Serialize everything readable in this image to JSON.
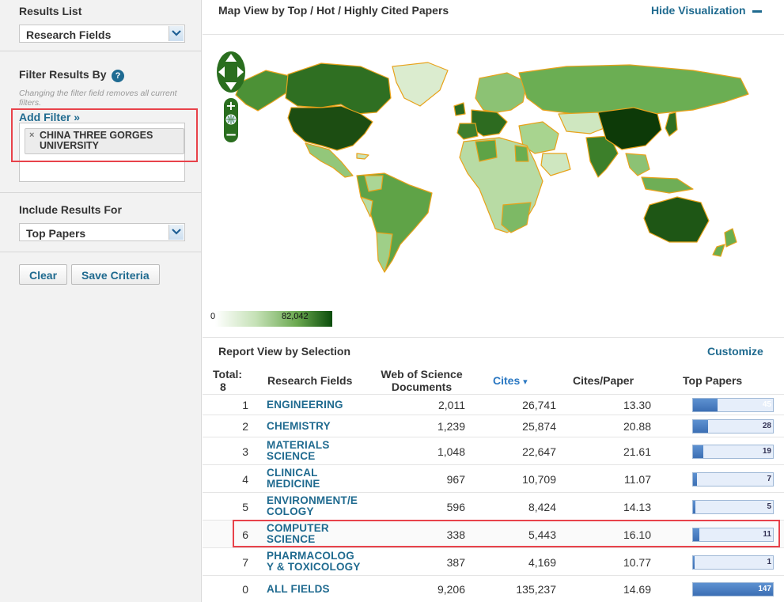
{
  "sidebar": {
    "results_list_label": "Results List",
    "results_list_value": "Research Fields",
    "filter_label": "Filter Results By",
    "help_glyph": "?",
    "filter_hint": "Changing the filter field removes all current filters.",
    "add_filter": "Add Filter »",
    "filter_chip_line1": "CHINA THREE GORGES",
    "filter_chip_line2": "UNIVERSITY",
    "chip_remove_glyph": "×",
    "include_label": "Include Results For",
    "include_value": "Top Papers",
    "clear_button": "Clear",
    "save_button": "Save Criteria"
  },
  "map": {
    "title": "Map View by Top / Hot / Highly Cited Papers",
    "hide_label": "Hide Visualization",
    "legend_min": "0",
    "legend_max": "82,042",
    "zoom_in": "+",
    "zoom_out": "−"
  },
  "report": {
    "title": "Report View by Selection",
    "customize": "Customize",
    "headers": {
      "total_label": "Total:",
      "total_value": "8",
      "field": "Research Fields",
      "docs_line1": "Web of Science",
      "docs_line2": "Documents",
      "cites": "Cites",
      "cites_sort_glyph": "▾",
      "cpp": "Cites/Paper",
      "top": "Top Papers"
    },
    "rows": [
      {
        "num": "1",
        "field1": "ENGINEERING",
        "field2": "",
        "docs": "2,011",
        "cites": "26,741",
        "cpp": "13.30",
        "top": "45",
        "fill": 0.31
      },
      {
        "num": "2",
        "field1": "CHEMISTRY",
        "field2": "",
        "docs": "1,239",
        "cites": "25,874",
        "cpp": "20.88",
        "top": "28",
        "fill": 0.19
      },
      {
        "num": "3",
        "field1": "MATERIALS",
        "field2": "SCIENCE",
        "docs": "1,048",
        "cites": "22,647",
        "cpp": "21.61",
        "top": "19",
        "fill": 0.13
      },
      {
        "num": "4",
        "field1": "CLINICAL",
        "field2": "MEDICINE",
        "docs": "967",
        "cites": "10,709",
        "cpp": "11.07",
        "top": "7",
        "fill": 0.05
      },
      {
        "num": "5",
        "field1": "ENVIRONMENT/E",
        "field2": "COLOGY",
        "docs": "596",
        "cites": "8,424",
        "cpp": "14.13",
        "top": "5",
        "fill": 0.034
      },
      {
        "num": "6",
        "field1": "COMPUTER",
        "field2": "SCIENCE",
        "docs": "338",
        "cites": "5,443",
        "cpp": "16.10",
        "top": "11",
        "fill": 0.075
      },
      {
        "num": "7",
        "field1": "PHARMACOLOG",
        "field2": "Y & TOXICOLOGY",
        "docs": "387",
        "cites": "4,169",
        "cpp": "10.77",
        "top": "1",
        "fill": 0.007
      },
      {
        "num": "0",
        "field1": "ALL FIELDS",
        "field2": "",
        "docs": "9,206",
        "cites": "135,237",
        "cpp": "14.69",
        "top": "147",
        "fill": 1.0
      }
    ]
  }
}
